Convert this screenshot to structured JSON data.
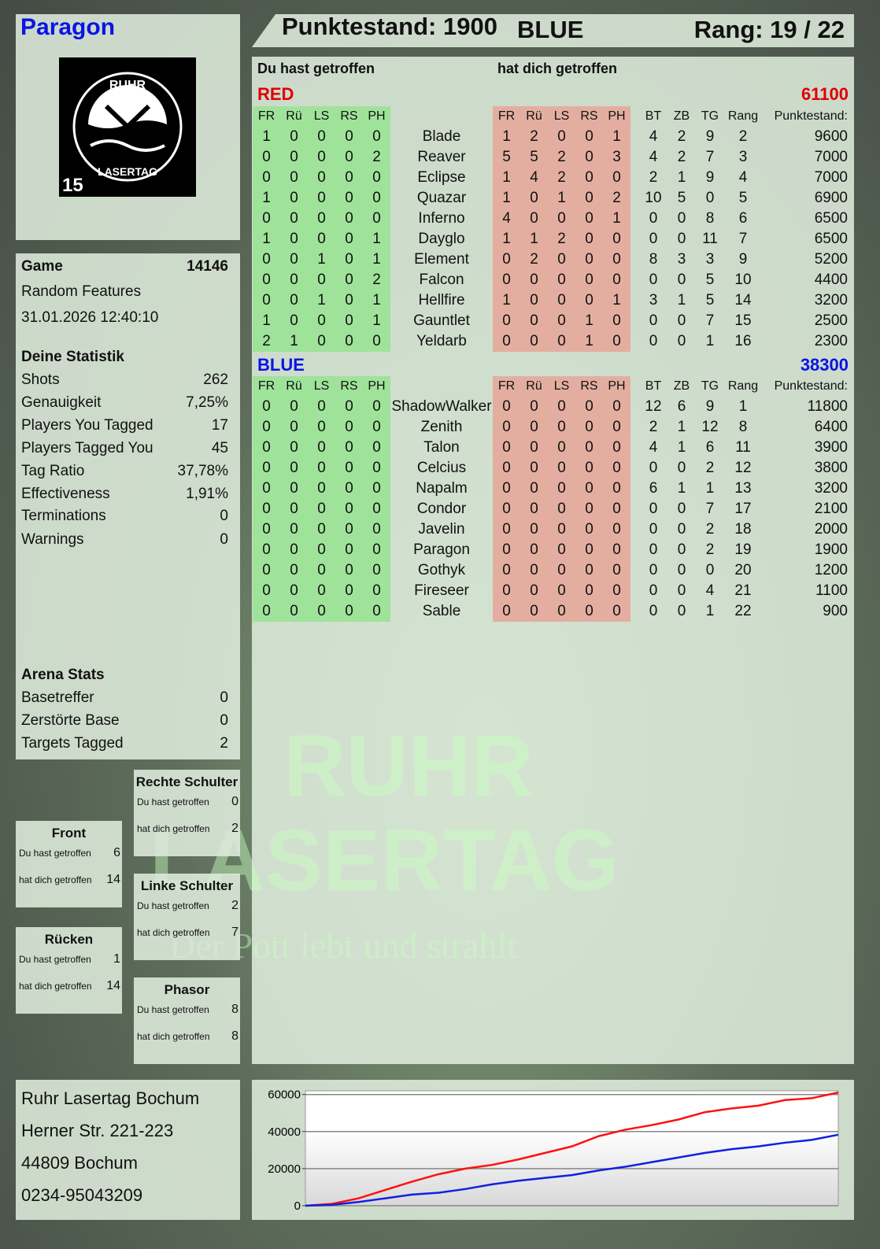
{
  "player": {
    "name": "Paragon",
    "logo_text": [
      "RUHR",
      "LASERTAG"
    ],
    "logo_number": "15"
  },
  "top": {
    "score": "Punktestand: 1900",
    "team": "BLUE",
    "rank": "Rang: 19 / 22"
  },
  "headers": {
    "you_hit": "Du hast getroffen",
    "hit_you": "hat dich getroffen"
  },
  "columns": {
    "hit": [
      "FR",
      "Rü",
      "LS",
      "RS",
      "PH"
    ],
    "stats": [
      "BT",
      "ZB",
      "TG",
      "Rang",
      "Punktestand:"
    ]
  },
  "teams": [
    {
      "name": "RED",
      "total": "61100",
      "color": "#e00000",
      "players": [
        {
          "name": "Blade",
          "you": [
            1,
            0,
            0,
            0,
            0
          ],
          "them": [
            1,
            2,
            0,
            0,
            1
          ],
          "bt": 4,
          "zb": 2,
          "tg": 9,
          "rank": 2,
          "score": 9600
        },
        {
          "name": "Reaver",
          "you": [
            0,
            0,
            0,
            0,
            2
          ],
          "them": [
            5,
            5,
            2,
            0,
            3
          ],
          "bt": 4,
          "zb": 2,
          "tg": 7,
          "rank": 3,
          "score": 7000
        },
        {
          "name": "Eclipse",
          "you": [
            0,
            0,
            0,
            0,
            0
          ],
          "them": [
            1,
            4,
            2,
            0,
            0
          ],
          "bt": 2,
          "zb": 1,
          "tg": 9,
          "rank": 4,
          "score": 7000
        },
        {
          "name": "Quazar",
          "you": [
            1,
            0,
            0,
            0,
            0
          ],
          "them": [
            1,
            0,
            1,
            0,
            2
          ],
          "bt": 10,
          "zb": 5,
          "tg": 0,
          "rank": 5,
          "score": 6900
        },
        {
          "name": "Inferno",
          "you": [
            0,
            0,
            0,
            0,
            0
          ],
          "them": [
            4,
            0,
            0,
            0,
            1
          ],
          "bt": 0,
          "zb": 0,
          "tg": 8,
          "rank": 6,
          "score": 6500
        },
        {
          "name": "Dayglo",
          "you": [
            1,
            0,
            0,
            0,
            1
          ],
          "them": [
            1,
            1,
            2,
            0,
            0
          ],
          "bt": 0,
          "zb": 0,
          "tg": 11,
          "rank": 7,
          "score": 6500
        },
        {
          "name": "Element",
          "you": [
            0,
            0,
            1,
            0,
            1
          ],
          "them": [
            0,
            2,
            0,
            0,
            0
          ],
          "bt": 8,
          "zb": 3,
          "tg": 3,
          "rank": 9,
          "score": 5200
        },
        {
          "name": "Falcon",
          "you": [
            0,
            0,
            0,
            0,
            2
          ],
          "them": [
            0,
            0,
            0,
            0,
            0
          ],
          "bt": 0,
          "zb": 0,
          "tg": 5,
          "rank": 10,
          "score": 4400
        },
        {
          "name": "Hellfire",
          "you": [
            0,
            0,
            1,
            0,
            1
          ],
          "them": [
            1,
            0,
            0,
            0,
            1
          ],
          "bt": 3,
          "zb": 1,
          "tg": 5,
          "rank": 14,
          "score": 3200
        },
        {
          "name": "Gauntlet",
          "you": [
            1,
            0,
            0,
            0,
            1
          ],
          "them": [
            0,
            0,
            0,
            1,
            0
          ],
          "bt": 0,
          "zb": 0,
          "tg": 7,
          "rank": 15,
          "score": 2500
        },
        {
          "name": "Yeldarb",
          "you": [
            2,
            1,
            0,
            0,
            0
          ],
          "them": [
            0,
            0,
            0,
            1,
            0
          ],
          "bt": 0,
          "zb": 0,
          "tg": 1,
          "rank": 16,
          "score": 2300
        }
      ]
    },
    {
      "name": "BLUE",
      "total": "38300",
      "color": "#0a14e6",
      "players": [
        {
          "name": "ShadowWalker",
          "you": [
            0,
            0,
            0,
            0,
            0
          ],
          "them": [
            0,
            0,
            0,
            0,
            0
          ],
          "bt": 12,
          "zb": 6,
          "tg": 9,
          "rank": 1,
          "score": 11800
        },
        {
          "name": "Zenith",
          "you": [
            0,
            0,
            0,
            0,
            0
          ],
          "them": [
            0,
            0,
            0,
            0,
            0
          ],
          "bt": 2,
          "zb": 1,
          "tg": 12,
          "rank": 8,
          "score": 6400
        },
        {
          "name": "Talon",
          "you": [
            0,
            0,
            0,
            0,
            0
          ],
          "them": [
            0,
            0,
            0,
            0,
            0
          ],
          "bt": 4,
          "zb": 1,
          "tg": 6,
          "rank": 11,
          "score": 3900
        },
        {
          "name": "Celcius",
          "you": [
            0,
            0,
            0,
            0,
            0
          ],
          "them": [
            0,
            0,
            0,
            0,
            0
          ],
          "bt": 0,
          "zb": 0,
          "tg": 2,
          "rank": 12,
          "score": 3800
        },
        {
          "name": "Napalm",
          "you": [
            0,
            0,
            0,
            0,
            0
          ],
          "them": [
            0,
            0,
            0,
            0,
            0
          ],
          "bt": 6,
          "zb": 1,
          "tg": 1,
          "rank": 13,
          "score": 3200
        },
        {
          "name": "Condor",
          "you": [
            0,
            0,
            0,
            0,
            0
          ],
          "them": [
            0,
            0,
            0,
            0,
            0
          ],
          "bt": 0,
          "zb": 0,
          "tg": 7,
          "rank": 17,
          "score": 2100
        },
        {
          "name": "Javelin",
          "you": [
            0,
            0,
            0,
            0,
            0
          ],
          "them": [
            0,
            0,
            0,
            0,
            0
          ],
          "bt": 0,
          "zb": 0,
          "tg": 2,
          "rank": 18,
          "score": 2000
        },
        {
          "name": "Paragon",
          "you": [
            0,
            0,
            0,
            0,
            0
          ],
          "them": [
            0,
            0,
            0,
            0,
            0
          ],
          "bt": 0,
          "zb": 0,
          "tg": 2,
          "rank": 19,
          "score": 1900
        },
        {
          "name": "Gothyk",
          "you": [
            0,
            0,
            0,
            0,
            0
          ],
          "them": [
            0,
            0,
            0,
            0,
            0
          ],
          "bt": 0,
          "zb": 0,
          "tg": 0,
          "rank": 20,
          "score": 1200
        },
        {
          "name": "Fireseer",
          "you": [
            0,
            0,
            0,
            0,
            0
          ],
          "them": [
            0,
            0,
            0,
            0,
            0
          ],
          "bt": 0,
          "zb": 0,
          "tg": 4,
          "rank": 21,
          "score": 1100
        },
        {
          "name": "Sable",
          "you": [
            0,
            0,
            0,
            0,
            0
          ],
          "them": [
            0,
            0,
            0,
            0,
            0
          ],
          "bt": 0,
          "zb": 0,
          "tg": 1,
          "rank": 22,
          "score": 900
        }
      ]
    }
  ],
  "game": {
    "label": "Game",
    "id": "14146",
    "mode": "Random Features",
    "date": "31.01.2026 12:40:10"
  },
  "stats": {
    "title": "Deine Statistik",
    "rows": [
      {
        "label": "Shots",
        "value": "262"
      },
      {
        "label": "Genauigkeit",
        "value": "7,25%"
      },
      {
        "label": "Players You Tagged",
        "value": "17"
      },
      {
        "label": "Players Tagged You",
        "value": "45"
      },
      {
        "label": "Tag Ratio",
        "value": "37,78%"
      },
      {
        "label": "Effectiveness",
        "value": "1,91%"
      },
      {
        "label": "Terminations",
        "value": "0"
      },
      {
        "label": "Warnings",
        "value": "0"
      }
    ]
  },
  "arena": {
    "title": "Arena Stats",
    "rows": [
      {
        "label": "Basetreffer",
        "value": "0"
      },
      {
        "label": "Zerstörte Base",
        "value": "0"
      },
      {
        "label": "Targets Tagged",
        "value": "2"
      }
    ]
  },
  "zones": [
    {
      "title": "Rechte Schulter",
      "you_hit_label": "Du hast getroffen",
      "you_hit": "0",
      "hit_you_label": "hat dich getroffen",
      "hit_you": "2"
    },
    {
      "title": "Front",
      "you_hit_label": "Du hast getroffen",
      "you_hit": "6",
      "hit_you_label": "hat dich getroffen",
      "hit_you": "14"
    },
    {
      "title": "Linke Schulter",
      "you_hit_label": "Du hast getroffen",
      "you_hit": "2",
      "hit_you_label": "hat dich getroffen",
      "hit_you": "7"
    },
    {
      "title": "Rücken",
      "you_hit_label": "Du hast getroffen",
      "you_hit": "1",
      "hit_you_label": "hat dich getroffen",
      "hit_you": "14"
    },
    {
      "title": "Phasor",
      "you_hit_label": "Du hast getroffen",
      "you_hit": "8",
      "hit_you_label": "hat dich getroffen",
      "hit_you": "8"
    }
  ],
  "address": [
    "Ruhr Lasertag Bochum",
    "Herner Str. 221-223",
    "44809 Bochum",
    "0234-95043209"
  ],
  "watermark": {
    "line1": "RUHR",
    "line2": "LASERTAG",
    "slogan": "Der Pott lebt und strahlt"
  },
  "chart_data": {
    "type": "line",
    "ylim": [
      0,
      62000
    ],
    "yticks": [
      0,
      20000,
      40000,
      60000
    ],
    "grid": true,
    "x": [
      0,
      1,
      2,
      3,
      4,
      5,
      6,
      7,
      8,
      9,
      10,
      11,
      12,
      13,
      14,
      15,
      16,
      17,
      18,
      19,
      20
    ],
    "series": [
      {
        "color": "#ff1010",
        "values": [
          0,
          1000,
          4000,
          8500,
          13000,
          17000,
          20000,
          22000,
          25000,
          28500,
          32000,
          37500,
          41000,
          43500,
          46500,
          50500,
          52500,
          54000,
          57000,
          58000,
          61100
        ]
      },
      {
        "color": "#1020e0",
        "values": [
          0,
          500,
          2000,
          4000,
          6000,
          7000,
          9000,
          11500,
          13500,
          15000,
          16500,
          19000,
          21000,
          23500,
          26000,
          28500,
          30500,
          32000,
          34000,
          35500,
          38300
        ]
      }
    ]
  }
}
